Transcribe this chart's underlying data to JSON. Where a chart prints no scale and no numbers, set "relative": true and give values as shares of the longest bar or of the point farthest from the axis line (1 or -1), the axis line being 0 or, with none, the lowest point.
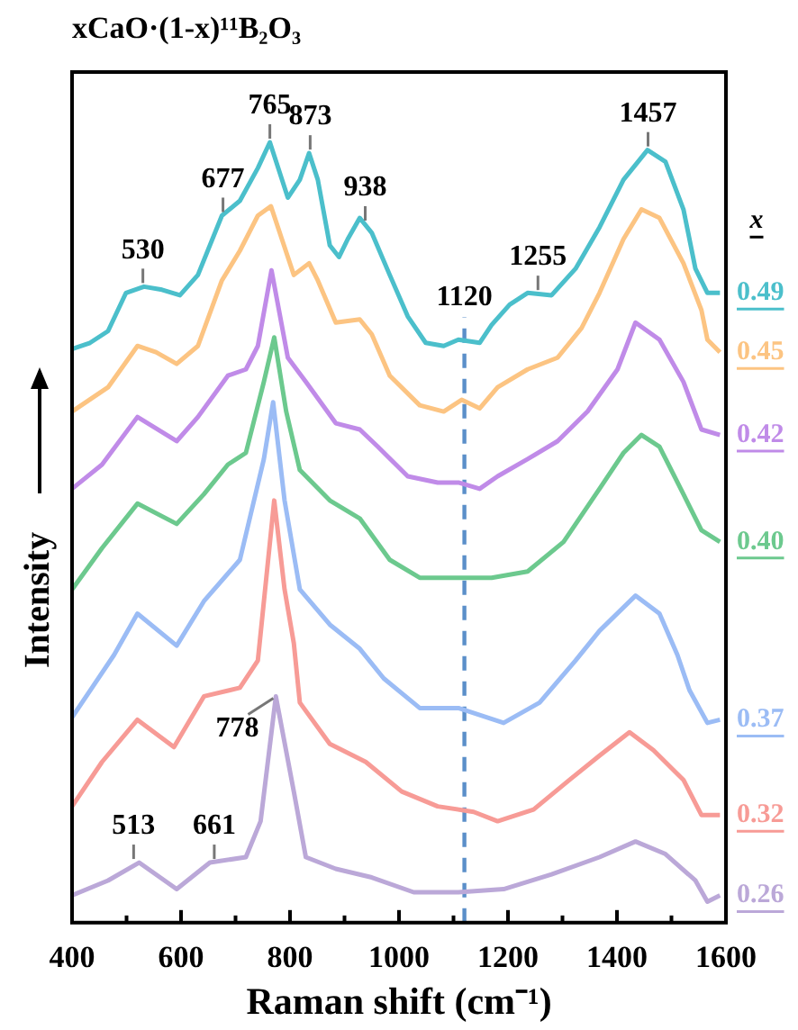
{
  "chart_data": {
    "type": "line",
    "title": "xCaO·(1-x)¹¹B₂O₃",
    "xlabel": "Raman shift (cm⁻¹)",
    "ylabel": "Intensity",
    "legend_title": "x",
    "relative": true,
    "xlim": [
      400,
      1600
    ],
    "xticks": [
      400,
      {
        "value": 500,
        "label": null
      },
      600,
      {
        "value": 700,
        "label": null
      },
      800,
      {
        "value": 900,
        "label": null
      },
      1000,
      {
        "value": 1100,
        "label": null
      },
      1200,
      {
        "value": 1300,
        "label": null
      },
      1400,
      {
        "value": 1500,
        "label": null
      },
      1600
    ],
    "marker": "none",
    "line_style": "solid",
    "series": [
      {
        "name": "0.49",
        "color": "#4bbfcb",
        "x": [
          400,
          433,
          466,
          499,
          532,
          565,
          598,
          631,
          675,
          708,
          741,
          763,
          796,
          818,
          835,
          851,
          873,
          890,
          906,
          928,
          950,
          983,
          1016,
          1049,
          1082,
          1109,
          1148,
          1170,
          1203,
          1236,
          1280,
          1324,
          1368,
          1412,
          1456,
          1489,
          1522,
          1544,
          1566,
          1589
        ],
        "values": [
          0.735,
          0.743,
          0.758,
          0.807,
          0.815,
          0.811,
          0.804,
          0.83,
          0.906,
          0.925,
          0.967,
          1.0,
          0.929,
          0.952,
          0.986,
          0.952,
          0.868,
          0.853,
          0.876,
          0.903,
          0.884,
          0.83,
          0.777,
          0.743,
          0.739,
          0.747,
          0.743,
          0.766,
          0.792,
          0.807,
          0.804,
          0.838,
          0.891,
          0.952,
          0.99,
          0.975,
          0.914,
          0.838,
          0.807,
          0.807
        ]
      },
      {
        "name": "0.45",
        "color": "#fcc482",
        "x": [
          400,
          466,
          520,
          554,
          592,
          631,
          675,
          708,
          741,
          765,
          785,
          807,
          835,
          851,
          884,
          928,
          950,
          983,
          1038,
          1082,
          1115,
          1148,
          1181,
          1236,
          1291,
          1335,
          1368,
          1412,
          1445,
          1478,
          1522,
          1555,
          1566,
          1589
        ],
        "values": [
          0.655,
          0.686,
          0.739,
          0.731,
          0.716,
          0.739,
          0.823,
          0.861,
          0.906,
          0.918,
          0.876,
          0.83,
          0.845,
          0.823,
          0.769,
          0.773,
          0.754,
          0.701,
          0.663,
          0.655,
          0.67,
          0.659,
          0.686,
          0.709,
          0.724,
          0.762,
          0.807,
          0.876,
          0.914,
          0.903,
          0.845,
          0.785,
          0.747,
          0.731
        ]
      },
      {
        "name": "0.42",
        "color": "#c08be8",
        "x": [
          400,
          455,
          520,
          592,
          631,
          686,
          719,
          741,
          766,
          796,
          829,
          884,
          928,
          961,
          1016,
          1071,
          1109,
          1148,
          1181,
          1236,
          1291,
          1346,
          1401,
          1434,
          1478,
          1522,
          1555,
          1589
        ],
        "values": [
          0.556,
          0.587,
          0.648,
          0.617,
          0.648,
          0.701,
          0.709,
          0.739,
          0.836,
          0.724,
          0.693,
          0.64,
          0.632,
          0.61,
          0.572,
          0.564,
          0.564,
          0.556,
          0.572,
          0.594,
          0.617,
          0.655,
          0.709,
          0.769,
          0.747,
          0.693,
          0.632,
          0.625
        ]
      },
      {
        "name": "0.40",
        "color": "#6cc98e",
        "x": [
          400,
          455,
          520,
          592,
          642,
          686,
          719,
          752,
          771,
          793,
          818,
          873,
          928,
          983,
          1038,
          1109,
          1170,
          1236,
          1302,
          1368,
          1412,
          1445,
          1478,
          1522,
          1555,
          1589
        ],
        "values": [
          0.427,
          0.48,
          0.537,
          0.511,
          0.549,
          0.587,
          0.602,
          0.693,
          0.75,
          0.655,
          0.58,
          0.541,
          0.518,
          0.465,
          0.442,
          0.442,
          0.442,
          0.45,
          0.488,
          0.556,
          0.602,
          0.625,
          0.61,
          0.549,
          0.503,
          0.488
        ]
      },
      {
        "name": "0.37",
        "color": "#9bbcf5",
        "x": [
          400,
          477,
          520,
          592,
          642,
          708,
          752,
          769,
          790,
          818,
          873,
          928,
          972,
          1038,
          1109,
          1192,
          1258,
          1324,
          1368,
          1434,
          1478,
          1511,
          1533,
          1566,
          1589
        ],
        "values": [
          0.263,
          0.343,
          0.396,
          0.355,
          0.412,
          0.465,
          0.594,
          0.667,
          0.541,
          0.427,
          0.382,
          0.351,
          0.313,
          0.275,
          0.275,
          0.256,
          0.282,
          0.336,
          0.374,
          0.419,
          0.396,
          0.343,
          0.298,
          0.256,
          0.26
        ]
      },
      {
        "name": "0.32",
        "color": "#f79b96",
        "x": [
          400,
          455,
          520,
          587,
          642,
          708,
          741,
          771,
          790,
          807,
          818,
          873,
          939,
          1005,
          1071,
          1137,
          1181,
          1247,
          1313,
          1368,
          1423,
          1467,
          1522,
          1555,
          1589
        ],
        "values": [
          0.149,
          0.206,
          0.26,
          0.225,
          0.29,
          0.301,
          0.336,
          0.541,
          0.427,
          0.358,
          0.282,
          0.229,
          0.206,
          0.168,
          0.149,
          0.142,
          0.13,
          0.145,
          0.183,
          0.214,
          0.244,
          0.221,
          0.183,
          0.138,
          0.138
        ]
      },
      {
        "name": "0.26",
        "color": "#bba8d8",
        "x": [
          400,
          466,
          523,
          592,
          653,
          719,
          746,
          774,
          807,
          829,
          884,
          950,
          1027,
          1109,
          1192,
          1280,
          1368,
          1434,
          1489,
          1544,
          1566,
          1589
        ],
        "values": [
          0.035,
          0.054,
          0.077,
          0.043,
          0.077,
          0.084,
          0.13,
          0.29,
          0.168,
          0.084,
          0.069,
          0.058,
          0.039,
          0.039,
          0.043,
          0.062,
          0.084,
          0.104,
          0.088,
          0.054,
          0.027,
          0.035
        ]
      }
    ],
    "ref_lines": [
      {
        "axis": "x",
        "value": 1120,
        "label": "1120",
        "color": "#5b8fc9",
        "line_style": "dashed"
      }
    ],
    "annotations": [
      {
        "text": "530",
        "x": 530,
        "y": 0.815
      },
      {
        "text": "677",
        "x": 677,
        "y": 0.906
      },
      {
        "text": "765",
        "x": 763,
        "y": 1.0
      },
      {
        "text": "873",
        "x": 837,
        "y": 0.986
      },
      {
        "text": "938",
        "x": 938,
        "y": 0.895
      },
      {
        "text": "1255",
        "x": 1255,
        "y": 0.806
      },
      {
        "text": "1457",
        "x": 1457,
        "y": 0.99
      },
      {
        "text": "513",
        "x": 513,
        "y": 0.077
      },
      {
        "text": "661",
        "x": 661,
        "y": 0.077
      },
      {
        "text": "778",
        "x": 776,
        "y": 0.29
      }
    ]
  }
}
